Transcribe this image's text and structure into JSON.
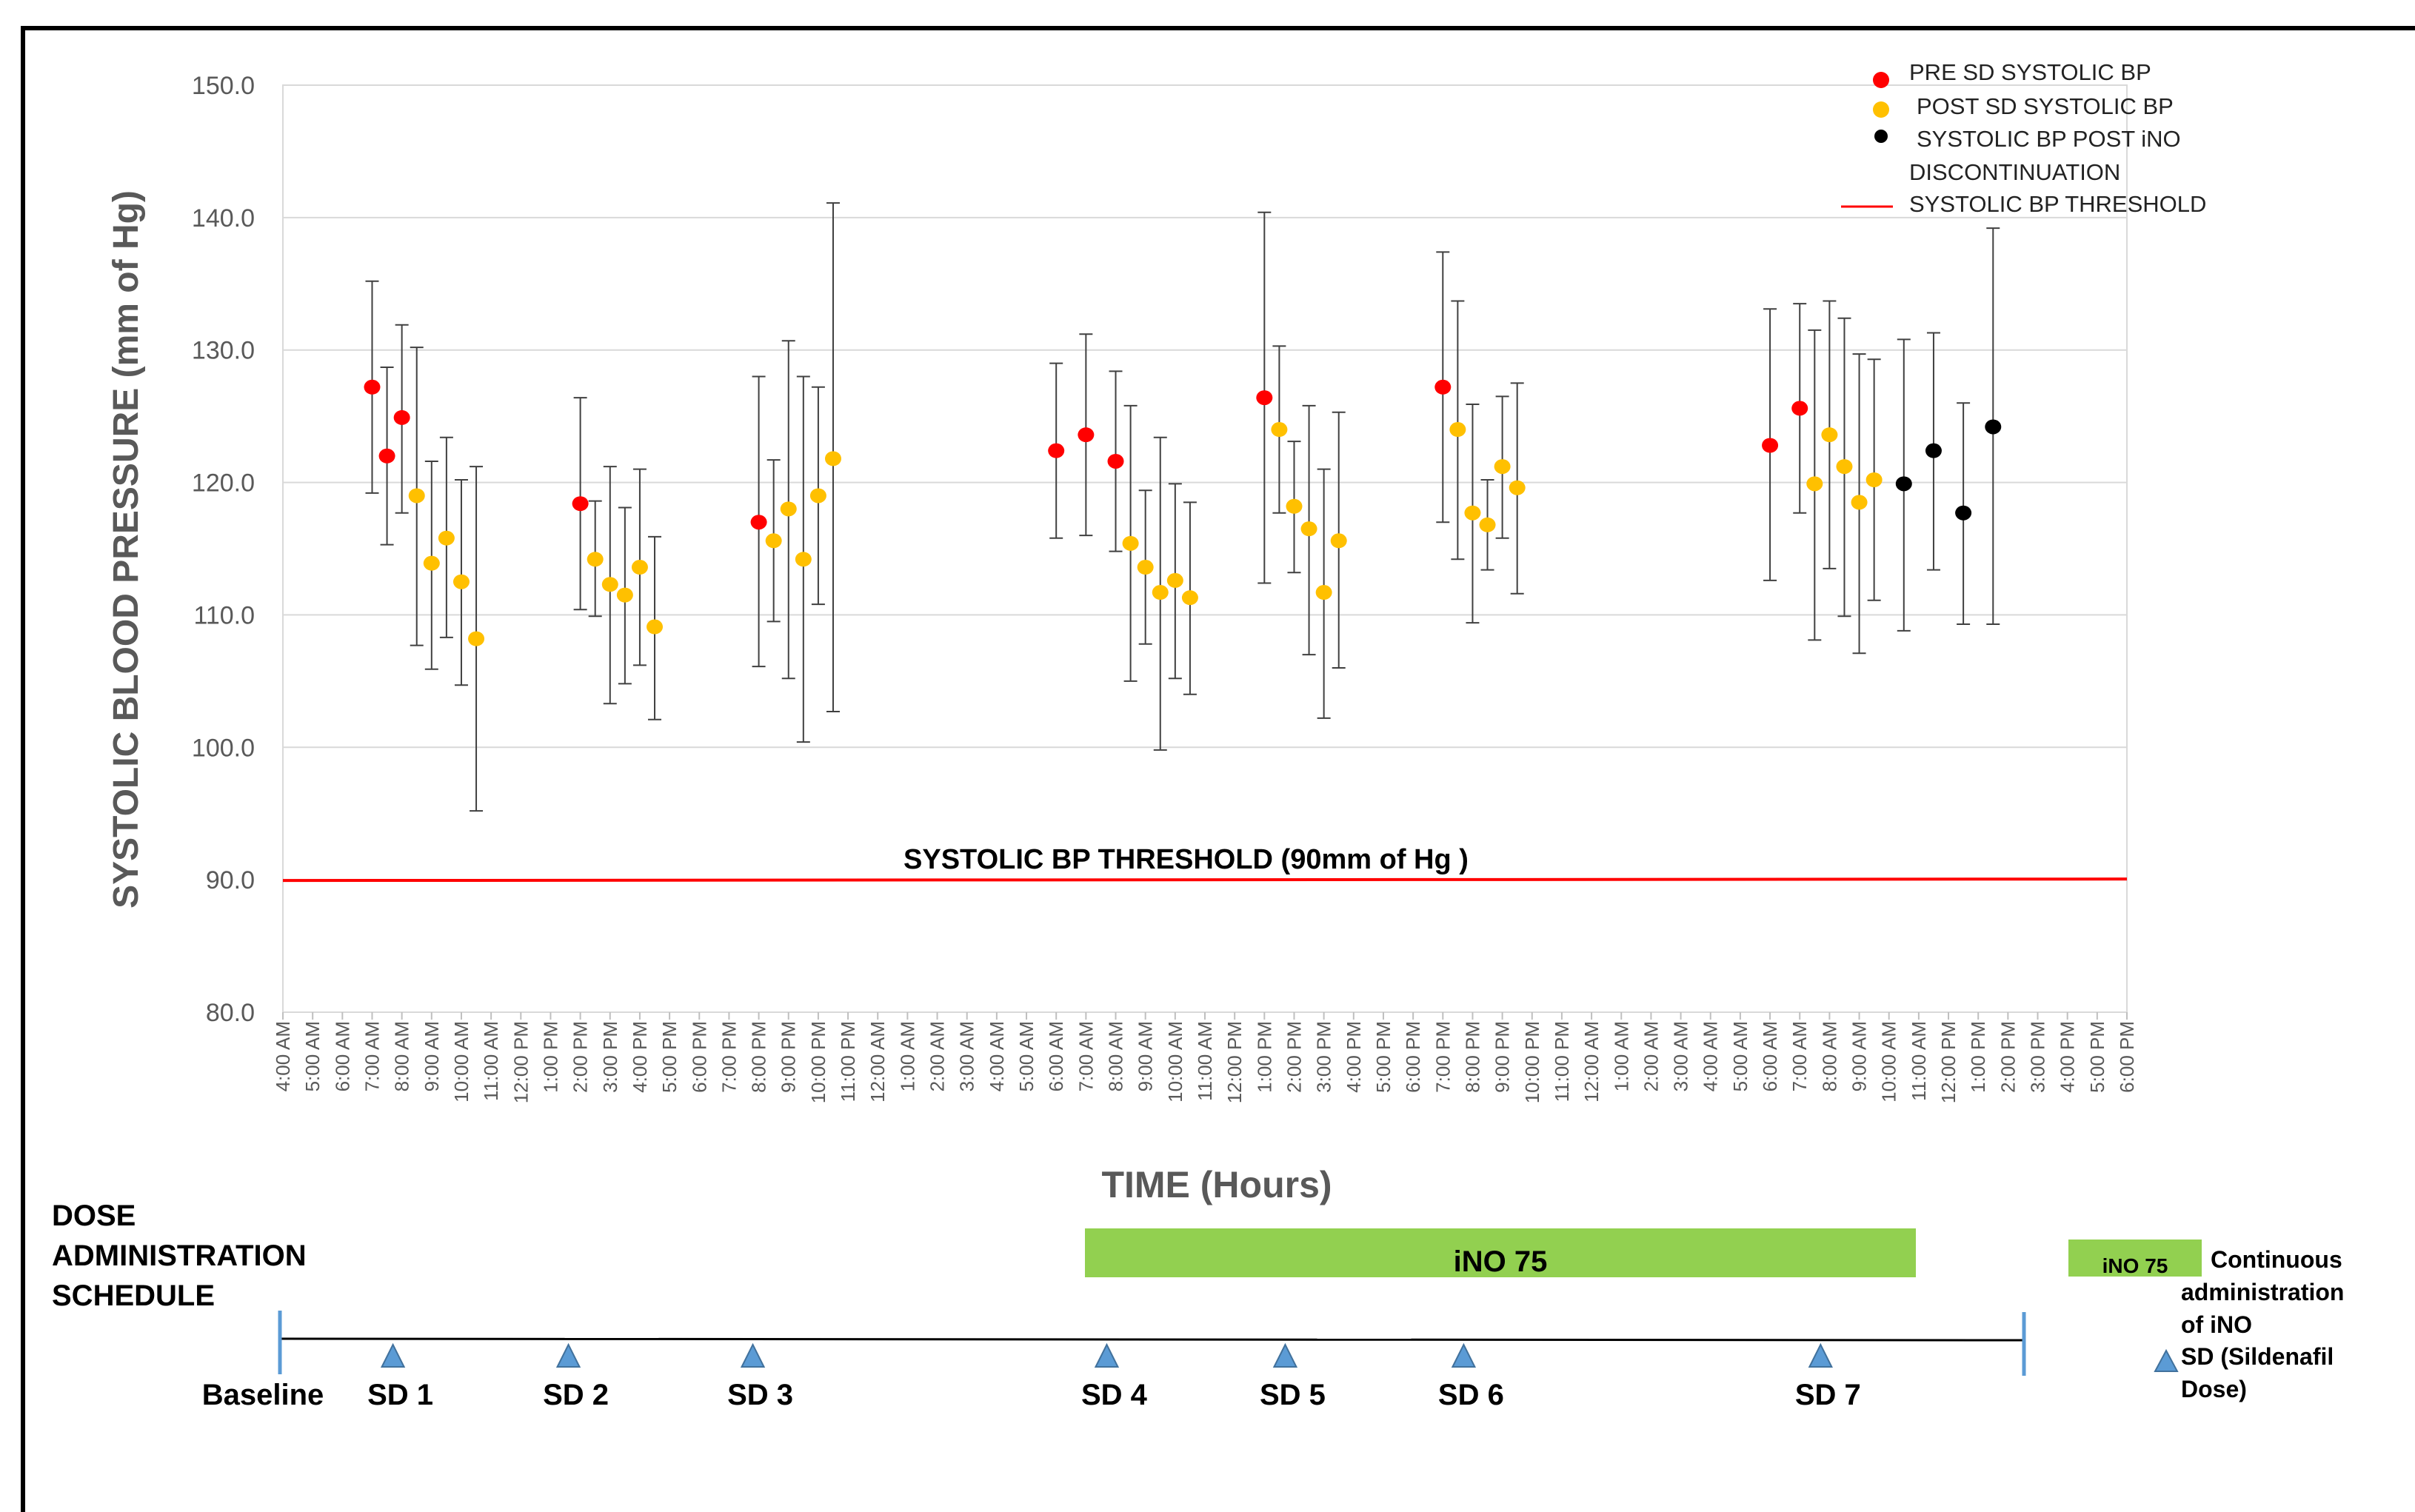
{
  "chart_data": {
    "type": "scatter",
    "ylabel": "SYSTOLIC BLOOD PRESSURE (mm of Hg)",
    "xlabel": "TIME (Hours)",
    "ylim": [
      80.0,
      150.0
    ],
    "yticks": [
      "80.0",
      "90.0",
      "100.0",
      "110.0",
      "120.0",
      "130.0",
      "140.0",
      "150.0"
    ],
    "grid": true,
    "legend_position": "top-right",
    "x_ticks": [
      "4:00 AM",
      "5:00 AM",
      "6:00 AM",
      "7:00 AM",
      "8:00 AM",
      "9:00 AM",
      "10:00 AM",
      "11:00 AM",
      "12:00 PM",
      "1:00 PM",
      "2:00 PM",
      "3:00 PM",
      "4:00 PM",
      "5:00 PM",
      "6:00 PM",
      "7:00 PM",
      "8:00 PM",
      "9:00 PM",
      "10:00 PM",
      "11:00 PM",
      "12:00 AM",
      "1:00 AM",
      "2:00 AM",
      "3:00 AM",
      "4:00 AM",
      "5:00 AM",
      "6:00 AM",
      "7:00 AM",
      "8:00 AM",
      "9:00 AM",
      "10:00 AM",
      "11:00 AM",
      "12:00 PM",
      "1:00 PM",
      "2:00 PM",
      "3:00 PM",
      "4:00 PM",
      "5:00 PM",
      "6:00 PM",
      "7:00 PM",
      "8:00 PM",
      "9:00 PM",
      "10:00 PM",
      "11:00 PM",
      "12:00 AM",
      "1:00 AM",
      "2:00 AM",
      "3:00 AM",
      "4:00 AM",
      "5:00 AM",
      "6:00 AM",
      "7:00 AM",
      "8:00 AM",
      "9:00 AM",
      "10:00 AM",
      "11:00 AM",
      "12:00 PM",
      "1:00 PM",
      "2:00 PM",
      "3:00 PM",
      "4:00 PM",
      "5:00 PM",
      "6:00 PM"
    ],
    "series": [
      {
        "name": "PRE SD SYSTOLIC BP",
        "color": "#ff0000",
        "points": [
          {
            "x": 3.0,
            "y": 127.2,
            "low": 119.2,
            "high": 135.2
          },
          {
            "x": 3.5,
            "y": 122.0,
            "low": 115.3,
            "high": 128.7
          },
          {
            "x": 4.0,
            "y": 124.9,
            "low": 117.7,
            "high": 131.9
          },
          {
            "x": 10.0,
            "y": 118.4,
            "low": 110.4,
            "high": 126.4
          },
          {
            "x": 16.0,
            "y": 117.0,
            "low": 106.1,
            "high": 128.0
          },
          {
            "x": 26.0,
            "y": 122.4,
            "low": 115.8,
            "high": 129.0
          },
          {
            "x": 27.0,
            "y": 123.6,
            "low": 116.0,
            "high": 131.2
          },
          {
            "x": 28.0,
            "y": 121.6,
            "low": 114.8,
            "high": 128.4
          },
          {
            "x": 33.0,
            "y": 126.4,
            "low": 112.4,
            "high": 140.4
          },
          {
            "x": 39.0,
            "y": 127.2,
            "low": 117.0,
            "high": 137.4
          },
          {
            "x": 50.0,
            "y": 122.8,
            "low": 112.6,
            "high": 133.1
          },
          {
            "x": 51.0,
            "y": 125.6,
            "low": 117.7,
            "high": 133.5
          }
        ]
      },
      {
        "name": "POST SD SYSTOLIC BP",
        "color": "#ffc000",
        "points": [
          {
            "x": 4.5,
            "y": 119.0,
            "low": 107.7,
            "high": 130.2
          },
          {
            "x": 5.0,
            "y": 113.9,
            "low": 105.9,
            "high": 121.6
          },
          {
            "x": 5.5,
            "y": 115.8,
            "low": 108.3,
            "high": 123.4
          },
          {
            "x": 6.0,
            "y": 112.5,
            "low": 104.7,
            "high": 120.2
          },
          {
            "x": 6.5,
            "y": 108.2,
            "low": 95.2,
            "high": 121.2
          },
          {
            "x": 10.5,
            "y": 114.2,
            "low": 109.9,
            "high": 118.6
          },
          {
            "x": 11.0,
            "y": 112.3,
            "low": 103.3,
            "high": 121.2
          },
          {
            "x": 11.5,
            "y": 111.5,
            "low": 104.8,
            "high": 118.1
          },
          {
            "x": 12.0,
            "y": 113.6,
            "low": 106.2,
            "high": 121.0
          },
          {
            "x": 12.5,
            "y": 109.1,
            "low": 102.1,
            "high": 115.9
          },
          {
            "x": 16.5,
            "y": 115.6,
            "low": 109.5,
            "high": 121.7
          },
          {
            "x": 17.0,
            "y": 118.0,
            "low": 105.2,
            "high": 130.7
          },
          {
            "x": 17.5,
            "y": 114.2,
            "low": 100.4,
            "high": 128.0
          },
          {
            "x": 18.0,
            "y": 119.0,
            "low": 110.8,
            "high": 127.2
          },
          {
            "x": 18.5,
            "y": 121.8,
            "low": 102.7,
            "high": 141.1
          },
          {
            "x": 28.5,
            "y": 115.4,
            "low": 105.0,
            "high": 125.8
          },
          {
            "x": 29.0,
            "y": 113.6,
            "low": 107.8,
            "high": 119.4
          },
          {
            "x": 29.5,
            "y": 111.7,
            "low": 99.8,
            "high": 123.4
          },
          {
            "x": 30.0,
            "y": 112.6,
            "low": 105.2,
            "high": 119.9
          },
          {
            "x": 30.5,
            "y": 111.3,
            "low": 104.0,
            "high": 118.5
          },
          {
            "x": 33.5,
            "y": 124.0,
            "low": 117.7,
            "high": 130.3
          },
          {
            "x": 34.0,
            "y": 118.2,
            "low": 113.2,
            "high": 123.1
          },
          {
            "x": 34.5,
            "y": 116.5,
            "low": 107.0,
            "high": 125.8
          },
          {
            "x": 35.0,
            "y": 111.7,
            "low": 102.2,
            "high": 121.0
          },
          {
            "x": 35.5,
            "y": 115.6,
            "low": 106.0,
            "high": 125.3
          },
          {
            "x": 39.5,
            "y": 124.0,
            "low": 114.2,
            "high": 133.7
          },
          {
            "x": 40.0,
            "y": 117.7,
            "low": 109.4,
            "high": 125.9
          },
          {
            "x": 40.5,
            "y": 116.8,
            "low": 113.4,
            "high": 120.2
          },
          {
            "x": 41.0,
            "y": 121.2,
            "low": 115.8,
            "high": 126.5
          },
          {
            "x": 41.5,
            "y": 119.6,
            "low": 111.6,
            "high": 127.5
          },
          {
            "x": 51.5,
            "y": 119.9,
            "low": 108.1,
            "high": 131.5
          },
          {
            "x": 52.0,
            "y": 123.6,
            "low": 113.5,
            "high": 133.7
          },
          {
            "x": 52.5,
            "y": 121.2,
            "low": 109.9,
            "high": 132.4
          },
          {
            "x": 53.0,
            "y": 118.5,
            "low": 107.1,
            "high": 129.7
          },
          {
            "x": 53.5,
            "y": 120.2,
            "low": 111.1,
            "high": 129.3
          }
        ]
      },
      {
        "name": "SYSTOLIC BP POST iNO DISCONTINUATION",
        "color": "#000000",
        "points": [
          {
            "x": 54.5,
            "y": 119.9,
            "low": 108.8,
            "high": 130.8
          },
          {
            "x": 55.5,
            "y": 122.4,
            "low": 113.4,
            "high": 131.3
          },
          {
            "x": 56.5,
            "y": 117.7,
            "low": 109.3,
            "high": 126.0
          },
          {
            "x": 57.5,
            "y": 124.2,
            "low": 109.3,
            "high": 139.2
          }
        ]
      },
      {
        "name": "SYSTOLIC BP THRESHOLD",
        "color": "#ff0000",
        "type": "line",
        "value": 90.0
      }
    ],
    "threshold_annotation": "SYSTOLIC BP THRESHOLD (90mm of Hg )"
  },
  "legend": {
    "pre": "PRE SD SYSTOLIC BP",
    "post": "POST SD SYSTOLIC BP",
    "post_ino_line1": "SYSTOLIC BP POST iNO",
    "post_ino_line2": "DISCONTINUATION",
    "threshold": "SYSTOLIC BP THRESHOLD"
  },
  "schedule": {
    "title_lines": [
      "DOSE",
      "ADMINISTRATION",
      "SCHEDULE"
    ],
    "baseline_label": "Baseline",
    "ino_bar_label": "iNO 75",
    "ino_bar_color": "#92d050",
    "marker_color": "#5b9bd5",
    "doses": [
      {
        "label": "SD 1",
        "x": 3.7
      },
      {
        "label": "SD 2",
        "x": 9.6
      },
      {
        "label": "SD 3",
        "x": 15.8
      },
      {
        "label": "SD 4",
        "x": 27.7
      },
      {
        "label": "SD 5",
        "x": 33.7
      },
      {
        "label": "SD 6",
        "x": 39.7
      },
      {
        "label": "SD 7",
        "x": 51.7
      }
    ],
    "side_legend": {
      "ino_swatch_label": "iNO 75",
      "ino_text_lines": [
        "Continuous",
        "administration",
        "of iNO"
      ],
      "sd_text_lines": [
        "SD (Sildenafil",
        "Dose)"
      ]
    }
  }
}
